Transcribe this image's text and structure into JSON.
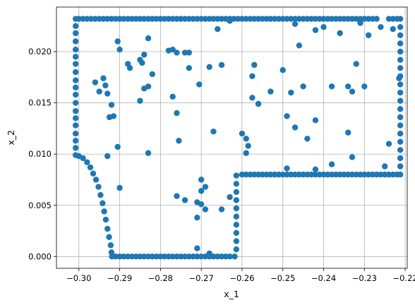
{
  "chart_data": {
    "type": "scatter",
    "title": "",
    "xlabel": "x_1",
    "ylabel": "x_2",
    "xlim": [
      -0.3055,
      -0.2195
    ],
    "ylim": [
      -0.00115,
      0.02435
    ],
    "grid": true,
    "marker_color": "#1f77b4",
    "xticks": [
      -0.3,
      -0.29,
      -0.28,
      -0.27,
      -0.26,
      -0.25,
      -0.24,
      -0.23,
      -0.22
    ],
    "xtick_labels": [
      "−0.30",
      "−0.29",
      "−0.28",
      "−0.27",
      "−0.26",
      "−0.25",
      "−0.24",
      "−0.23",
      "−0.22"
    ],
    "yticks": [
      0.0,
      0.005,
      0.01,
      0.015,
      0.02
    ],
    "ytick_labels": [
      "0.000",
      "0.005",
      "0.010",
      "0.015",
      "0.020"
    ],
    "series": [
      {
        "points": [
          [
            -0.3008,
            0.0232
          ],
          [
            -0.3,
            0.0232
          ],
          [
            -0.299,
            0.0232
          ],
          [
            -0.298,
            0.0232
          ],
          [
            -0.297,
            0.0232
          ],
          [
            -0.296,
            0.0232
          ],
          [
            -0.295,
            0.0232
          ],
          [
            -0.294,
            0.0232
          ],
          [
            -0.293,
            0.0232
          ],
          [
            -0.292,
            0.0232
          ],
          [
            -0.291,
            0.0232
          ],
          [
            -0.29,
            0.0232
          ],
          [
            -0.289,
            0.0232
          ],
          [
            -0.288,
            0.0232
          ],
          [
            -0.287,
            0.0232
          ],
          [
            -0.286,
            0.0232
          ],
          [
            -0.285,
            0.0232
          ],
          [
            -0.284,
            0.0232
          ],
          [
            -0.283,
            0.0232
          ],
          [
            -0.282,
            0.0232
          ],
          [
            -0.281,
            0.0232
          ],
          [
            -0.28,
            0.0232
          ],
          [
            -0.279,
            0.0232
          ],
          [
            -0.278,
            0.0232
          ],
          [
            -0.277,
            0.0232
          ],
          [
            -0.276,
            0.0232
          ],
          [
            -0.275,
            0.0232
          ],
          [
            -0.274,
            0.0232
          ],
          [
            -0.273,
            0.0232
          ],
          [
            -0.272,
            0.0232
          ],
          [
            -0.271,
            0.0232
          ],
          [
            -0.27,
            0.0232
          ],
          [
            -0.269,
            0.0232
          ],
          [
            -0.268,
            0.0232
          ],
          [
            -0.267,
            0.0232
          ],
          [
            -0.266,
            0.0232
          ],
          [
            -0.265,
            0.0232
          ],
          [
            -0.264,
            0.0232
          ],
          [
            -0.263,
            0.0232
          ],
          [
            -0.262,
            0.0232
          ],
          [
            -0.261,
            0.0232
          ],
          [
            -0.26,
            0.0232
          ],
          [
            -0.259,
            0.0232
          ],
          [
            -0.258,
            0.0232
          ],
          [
            -0.257,
            0.0232
          ],
          [
            -0.256,
            0.0232
          ],
          [
            -0.255,
            0.0232
          ],
          [
            -0.254,
            0.0232
          ],
          [
            -0.253,
            0.0232
          ],
          [
            -0.252,
            0.0232
          ],
          [
            -0.251,
            0.0232
          ],
          [
            -0.25,
            0.0232
          ],
          [
            -0.249,
            0.0232
          ],
          [
            -0.248,
            0.0232
          ],
          [
            -0.247,
            0.0232
          ],
          [
            -0.246,
            0.0232
          ],
          [
            -0.245,
            0.0232
          ],
          [
            -0.244,
            0.0232
          ],
          [
            -0.243,
            0.0232
          ],
          [
            -0.242,
            0.0232
          ],
          [
            -0.241,
            0.0232
          ],
          [
            -0.24,
            0.0232
          ],
          [
            -0.239,
            0.0232
          ],
          [
            -0.238,
            0.0232
          ],
          [
            -0.237,
            0.0232
          ],
          [
            -0.236,
            0.0232
          ],
          [
            -0.235,
            0.0232
          ],
          [
            -0.234,
            0.0232
          ],
          [
            -0.233,
            0.0232
          ],
          [
            -0.232,
            0.0232
          ],
          [
            -0.231,
            0.0232
          ],
          [
            -0.23,
            0.0232
          ],
          [
            -0.229,
            0.0232
          ],
          [
            -0.228,
            0.0232
          ],
          [
            -0.227,
            0.0232
          ],
          [
            -0.224,
            0.0232
          ],
          [
            -0.223,
            0.0232
          ],
          [
            -0.222,
            0.0232
          ],
          [
            -0.2212,
            0.0232
          ],
          [
            -0.3008,
            0.0225
          ],
          [
            -0.3008,
            0.0218
          ],
          [
            -0.3008,
            0.021
          ],
          [
            -0.3008,
            0.0202
          ],
          [
            -0.3008,
            0.0195
          ],
          [
            -0.3008,
            0.0188
          ],
          [
            -0.3008,
            0.018
          ],
          [
            -0.3008,
            0.0172
          ],
          [
            -0.3008,
            0.0165
          ],
          [
            -0.3008,
            0.0158
          ],
          [
            -0.3008,
            0.015
          ],
          [
            -0.3008,
            0.0142
          ],
          [
            -0.3008,
            0.0135
          ],
          [
            -0.3008,
            0.0128
          ],
          [
            -0.3008,
            0.012
          ],
          [
            -0.3008,
            0.0113
          ],
          [
            -0.3008,
            0.0106
          ],
          [
            -0.3008,
            0.0099
          ],
          [
            -0.3,
            0.0098
          ],
          [
            -0.299,
            0.0096
          ],
          [
            -0.298,
            0.0092
          ],
          [
            -0.2972,
            0.0087
          ],
          [
            -0.2965,
            0.0081
          ],
          [
            -0.2958,
            0.0075
          ],
          [
            -0.2952,
            0.0068
          ],
          [
            -0.2947,
            0.006
          ],
          [
            -0.2942,
            0.0052
          ],
          [
            -0.2938,
            0.0044
          ],
          [
            -0.2934,
            0.0036
          ],
          [
            -0.293,
            0.0027
          ],
          [
            -0.2926,
            0.0019
          ],
          [
            -0.2922,
            0.0011
          ],
          [
            -0.292,
            0.0004
          ],
          [
            -0.2919,
            0.0
          ],
          [
            -0.291,
            0.0
          ],
          [
            -0.29,
            0.0
          ],
          [
            -0.289,
            0.0
          ],
          [
            -0.288,
            0.0
          ],
          [
            -0.287,
            0.0
          ],
          [
            -0.286,
            0.0
          ],
          [
            -0.285,
            0.0
          ],
          [
            -0.284,
            0.0
          ],
          [
            -0.283,
            0.0
          ],
          [
            -0.282,
            0.0
          ],
          [
            -0.281,
            0.0
          ],
          [
            -0.28,
            0.0
          ],
          [
            -0.279,
            0.0
          ],
          [
            -0.278,
            0.0
          ],
          [
            -0.277,
            0.0
          ],
          [
            -0.276,
            0.0
          ],
          [
            -0.275,
            0.0
          ],
          [
            -0.274,
            0.0
          ],
          [
            -0.273,
            0.0
          ],
          [
            -0.272,
            0.0
          ],
          [
            -0.271,
            0.0
          ],
          [
            -0.27,
            0.0
          ],
          [
            -0.269,
            0.0
          ],
          [
            -0.268,
            0.0
          ],
          [
            -0.267,
            0.0
          ],
          [
            -0.266,
            0.0
          ],
          [
            -0.265,
            0.0
          ],
          [
            -0.264,
            0.0
          ],
          [
            -0.263,
            0.0
          ],
          [
            -0.2618,
            0.0
          ],
          [
            -0.2614,
            0.0007
          ],
          [
            -0.2614,
            0.0015
          ],
          [
            -0.2614,
            0.0023
          ],
          [
            -0.2614,
            0.0031
          ],
          [
            -0.2614,
            0.0039
          ],
          [
            -0.2614,
            0.0047
          ],
          [
            -0.2614,
            0.0055
          ],
          [
            -0.2614,
            0.0063
          ],
          [
            -0.2614,
            0.0071
          ],
          [
            -0.2614,
            0.0079
          ],
          [
            -0.26,
            0.008
          ],
          [
            -0.259,
            0.008
          ],
          [
            -0.258,
            0.008
          ],
          [
            -0.257,
            0.008
          ],
          [
            -0.256,
            0.008
          ],
          [
            -0.255,
            0.008
          ],
          [
            -0.254,
            0.008
          ],
          [
            -0.253,
            0.008
          ],
          [
            -0.252,
            0.008
          ],
          [
            -0.251,
            0.008
          ],
          [
            -0.25,
            0.008
          ],
          [
            -0.249,
            0.008
          ],
          [
            -0.248,
            0.008
          ],
          [
            -0.247,
            0.008
          ],
          [
            -0.246,
            0.008
          ],
          [
            -0.245,
            0.008
          ],
          [
            -0.244,
            0.008
          ],
          [
            -0.243,
            0.008
          ],
          [
            -0.242,
            0.008
          ],
          [
            -0.241,
            0.008
          ],
          [
            -0.24,
            0.008
          ],
          [
            -0.239,
            0.008
          ],
          [
            -0.238,
            0.008
          ],
          [
            -0.237,
            0.008
          ],
          [
            -0.236,
            0.008
          ],
          [
            -0.235,
            0.008
          ],
          [
            -0.234,
            0.008
          ],
          [
            -0.233,
            0.008
          ],
          [
            -0.232,
            0.008
          ],
          [
            -0.231,
            0.008
          ],
          [
            -0.23,
            0.008
          ],
          [
            -0.229,
            0.008
          ],
          [
            -0.228,
            0.008
          ],
          [
            -0.227,
            0.008
          ],
          [
            -0.226,
            0.008
          ],
          [
            -0.225,
            0.008
          ],
          [
            -0.224,
            0.008
          ],
          [
            -0.223,
            0.008
          ],
          [
            -0.222,
            0.008
          ],
          [
            -0.2212,
            0.008
          ],
          [
            -0.2212,
            0.0088
          ],
          [
            -0.2212,
            0.0096
          ],
          [
            -0.2212,
            0.0104
          ],
          [
            -0.2212,
            0.0112
          ],
          [
            -0.2212,
            0.012
          ],
          [
            -0.2212,
            0.0128
          ],
          [
            -0.2212,
            0.0136
          ],
          [
            -0.2212,
            0.0144
          ],
          [
            -0.2212,
            0.0152
          ],
          [
            -0.2212,
            0.016
          ],
          [
            -0.2212,
            0.0168
          ],
          [
            -0.2212,
            0.0176
          ],
          [
            -0.2212,
            0.0184
          ],
          [
            -0.2212,
            0.0192
          ],
          [
            -0.2212,
            0.02
          ],
          [
            -0.2212,
            0.0208
          ],
          [
            -0.2212,
            0.0216
          ],
          [
            -0.2212,
            0.0224
          ],
          [
            -0.2905,
            0.021
          ],
          [
            -0.29,
            0.0202
          ],
          [
            -0.283,
            0.0213
          ],
          [
            -0.284,
            0.0197
          ],
          [
            -0.285,
            0.0192
          ],
          [
            -0.2845,
            0.0189
          ],
          [
            -0.282,
            0.0178
          ],
          [
            -0.278,
            0.0201
          ],
          [
            -0.277,
            0.0202
          ],
          [
            -0.276,
            0.0199
          ],
          [
            -0.274,
            0.0199
          ],
          [
            -0.273,
            0.0199
          ],
          [
            -0.273,
            0.0184
          ],
          [
            -0.288,
            0.0188
          ],
          [
            -0.2875,
            0.0184
          ],
          [
            -0.296,
            0.017
          ],
          [
            -0.295,
            0.0161
          ],
          [
            -0.294,
            0.0174
          ],
          [
            -0.2935,
            0.0167
          ],
          [
            -0.293,
            0.0159
          ],
          [
            -0.292,
            0.0148
          ],
          [
            -0.2925,
            0.0136
          ],
          [
            -0.2915,
            0.0137
          ],
          [
            -0.285,
            0.0152
          ],
          [
            -0.284,
            0.0164
          ],
          [
            -0.283,
            0.0166
          ],
          [
            -0.277,
            0.0156
          ],
          [
            -0.276,
            0.014
          ],
          [
            -0.2755,
            0.0113
          ],
          [
            -0.2705,
            0.0168
          ],
          [
            -0.268,
            0.0185
          ],
          [
            -0.265,
            0.0187
          ],
          [
            -0.266,
            0.0222
          ],
          [
            -0.263,
            0.023
          ],
          [
            -0.257,
            0.0187
          ],
          [
            -0.2575,
            0.0176
          ],
          [
            -0.2575,
            0.0155
          ],
          [
            -0.256,
            0.0149
          ],
          [
            -0.253,
            0.0161
          ],
          [
            -0.25,
            0.0182
          ],
          [
            -0.248,
            0.016
          ],
          [
            -0.247,
            0.0126
          ],
          [
            -0.249,
            0.0137
          ],
          [
            -0.245,
            0.0166
          ],
          [
            -0.246,
            0.0206
          ],
          [
            -0.247,
            0.0227
          ],
          [
            -0.242,
            0.0221
          ],
          [
            -0.24,
            0.0224
          ],
          [
            -0.238,
            0.0166
          ],
          [
            -0.236,
            0.0218
          ],
          [
            -0.234,
            0.0166
          ],
          [
            -0.232,
            0.0188
          ],
          [
            -0.233,
            0.0161
          ],
          [
            -0.231,
            0.0228
          ],
          [
            -0.23,
            0.0166
          ],
          [
            -0.229,
            0.0216
          ],
          [
            -0.226,
            0.0224
          ],
          [
            -0.224,
            0.011
          ],
          [
            -0.223,
            0.0222
          ],
          [
            -0.2215,
            0.0174
          ],
          [
            -0.242,
            0.0133
          ],
          [
            -0.244,
            0.0115
          ],
          [
            -0.234,
            0.0121
          ],
          [
            -0.233,
            0.0097
          ],
          [
            -0.225,
            0.0088
          ],
          [
            -0.238,
            0.009
          ],
          [
            -0.242,
            0.0085
          ],
          [
            -0.249,
            0.0086
          ],
          [
            -0.26,
            0.012
          ],
          [
            -0.259,
            0.0115
          ],
          [
            -0.2585,
            0.0108
          ],
          [
            -0.259,
            0.0101
          ],
          [
            -0.263,
            0.0058
          ],
          [
            -0.267,
            0.0122
          ],
          [
            -0.27,
            0.0075
          ],
          [
            -0.27,
            0.0064
          ],
          [
            -0.271,
            0.0053
          ],
          [
            -0.269,
            0.0068
          ],
          [
            -0.27,
            0.0051
          ],
          [
            -0.269,
            0.0046
          ],
          [
            -0.271,
            0.0038
          ],
          [
            -0.265,
            0.0046
          ],
          [
            -0.274,
            0.0055
          ],
          [
            -0.276,
            0.0059
          ],
          [
            -0.271,
            0.0008
          ],
          [
            -0.268,
            0.0003
          ],
          [
            -0.283,
            0.0101
          ],
          [
            -0.2905,
            0.0107
          ],
          [
            -0.29,
            0.0067
          ],
          [
            -0.293,
            0.0098
          ]
        ]
      }
    ]
  }
}
